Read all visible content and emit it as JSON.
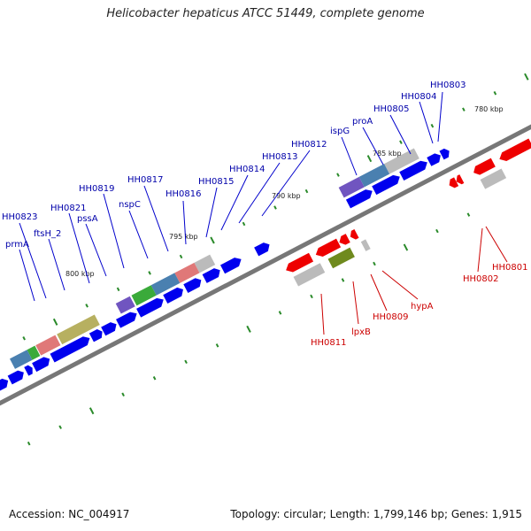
{
  "title": "Helicobacter hepaticus ATCC 51449, complete genome",
  "footer": {
    "accession": "Accession: NC_004917",
    "stats": "Topology: circular; Length: 1,799,146 bp; Genes: 1,915"
  },
  "colors": {
    "forward_gene": "#0000ee",
    "reverse_gene": "#ee0000",
    "forward_label": "#0000aa",
    "reverse_label": "#cc0000",
    "backbone": "#777777",
    "tick": "#2a8a2a"
  },
  "scale_labels": [
    "780 kbp",
    "785 kbp",
    "790 kbp",
    "795 kbp",
    "800 kbp"
  ],
  "forward_labels": [
    "HH0803",
    "HH0804",
    "HH0805",
    "proA",
    "ispG",
    "HH0812",
    "HH0813",
    "HH0814",
    "HH0815",
    "HH0816",
    "HH0817",
    "nspC",
    "HH0819",
    "pssA",
    "HH0821",
    "ftsH_2",
    "HH0823",
    "prmA"
  ],
  "reverse_labels": [
    "HH0801",
    "HH0802",
    "hypA",
    "HH0809",
    "lpxB",
    "HH0811"
  ]
}
